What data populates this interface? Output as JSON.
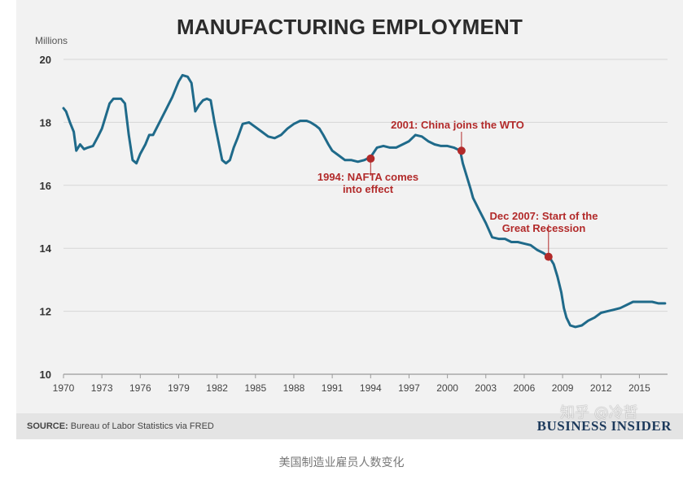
{
  "chart_data": {
    "type": "line",
    "title": "MANUFACTURING EMPLOYMENT",
    "ylabel": "Millions",
    "xlabel": "",
    "xlim": [
      1970,
      2017.2
    ],
    "ylim": [
      10,
      20
    ],
    "xticks": [
      1970,
      1973,
      1976,
      1979,
      1982,
      1985,
      1988,
      1991,
      1994,
      1997,
      2000,
      2003,
      2006,
      2009,
      2012,
      2015
    ],
    "yticks": [
      10,
      12,
      14,
      16,
      18,
      20
    ],
    "grid": true,
    "line_color": "#1f6a8a",
    "annotation_color": "#b22a2a",
    "series": [
      {
        "x": [
          1970,
          1970.2,
          1970.5,
          1970.8,
          1971,
          1971.3,
          1971.6,
          1971.9,
          1972.3,
          1972.7,
          1973,
          1973.3,
          1973.6,
          1973.9,
          1974.2,
          1974.5,
          1974.8,
          1975.1,
          1975.4,
          1975.7,
          1976,
          1976.4,
          1976.7,
          1977,
          1977.5,
          1978,
          1978.5,
          1979,
          1979.3,
          1979.7,
          1980,
          1980.3,
          1980.6,
          1980.9,
          1981.2,
          1981.5,
          1981.8,
          1982.1,
          1982.4,
          1982.7,
          1983,
          1983.3,
          1983.6,
          1984,
          1984.5,
          1985,
          1985.5,
          1986,
          1986.5,
          1987,
          1987.5,
          1988,
          1988.5,
          1989,
          1989.3,
          1989.7,
          1990,
          1990.3,
          1990.7,
          1991,
          1991.5,
          1992,
          1992.5,
          1993,
          1993.5,
          1994,
          1994.5,
          1995,
          1995.5,
          1996,
          1996.5,
          1997,
          1997.5,
          1998,
          1998.5,
          1999,
          1999.5,
          2000,
          2000.5,
          2001,
          2001.2,
          2001.5,
          2001.8,
          2002,
          2002.5,
          2003,
          2003.5,
          2004,
          2004.5,
          2005,
          2005.5,
          2006,
          2006.5,
          2007,
          2007.5,
          2008,
          2008.3,
          2008.6,
          2008.9,
          2009.1,
          2009.3,
          2009.6,
          2010,
          2010.5,
          2011,
          2011.5,
          2012,
          2012.5,
          2013,
          2013.5,
          2014,
          2014.5,
          2015,
          2015.5,
          2016,
          2016.5,
          2017
        ],
        "y": [
          18.45,
          18.35,
          18.0,
          17.7,
          17.1,
          17.3,
          17.15,
          17.2,
          17.25,
          17.55,
          17.8,
          18.2,
          18.6,
          18.75,
          18.75,
          18.75,
          18.6,
          17.6,
          16.8,
          16.7,
          17.0,
          17.3,
          17.6,
          17.6,
          18.0,
          18.4,
          18.8,
          19.3,
          19.5,
          19.45,
          19.25,
          18.35,
          18.55,
          18.7,
          18.75,
          18.7,
          18.0,
          17.4,
          16.8,
          16.7,
          16.8,
          17.2,
          17.5,
          17.95,
          18.0,
          17.85,
          17.7,
          17.55,
          17.5,
          17.6,
          17.8,
          17.95,
          18.05,
          18.05,
          18.0,
          17.9,
          17.8,
          17.6,
          17.3,
          17.1,
          16.95,
          16.8,
          16.8,
          16.75,
          16.8,
          16.9,
          17.2,
          17.25,
          17.2,
          17.2,
          17.3,
          17.4,
          17.6,
          17.55,
          17.4,
          17.3,
          17.25,
          17.25,
          17.2,
          17.1,
          16.7,
          16.3,
          15.9,
          15.6,
          15.2,
          14.8,
          14.35,
          14.3,
          14.3,
          14.2,
          14.2,
          14.15,
          14.1,
          13.95,
          13.85,
          13.7,
          13.5,
          13.1,
          12.6,
          12.1,
          11.8,
          11.55,
          11.5,
          11.55,
          11.7,
          11.8,
          11.95,
          12.0,
          12.05,
          12.1,
          12.2,
          12.3,
          12.3,
          12.3,
          12.3,
          12.25,
          12.25
        ]
      }
    ],
    "annotations": [
      {
        "x": 1994.0,
        "y": 16.85,
        "text_lines": [
          "1994: NAFTA comes",
          "into effect"
        ]
      },
      {
        "x": 2001.1,
        "y": 17.1,
        "text_lines": [
          "2001: China joins the WTO"
        ]
      },
      {
        "x": 2007.9,
        "y": 13.73,
        "text_lines": [
          "Dec 2007: Start of the",
          "Great Recession"
        ]
      }
    ]
  },
  "footer": {
    "source_label": "SOURCE:",
    "source_text": "Bureau of Labor Statistics via FRED",
    "brand": "BUSINESS INSIDER"
  },
  "watermark": "知乎 @冷哲",
  "caption": "美国制造业雇员人数变化"
}
